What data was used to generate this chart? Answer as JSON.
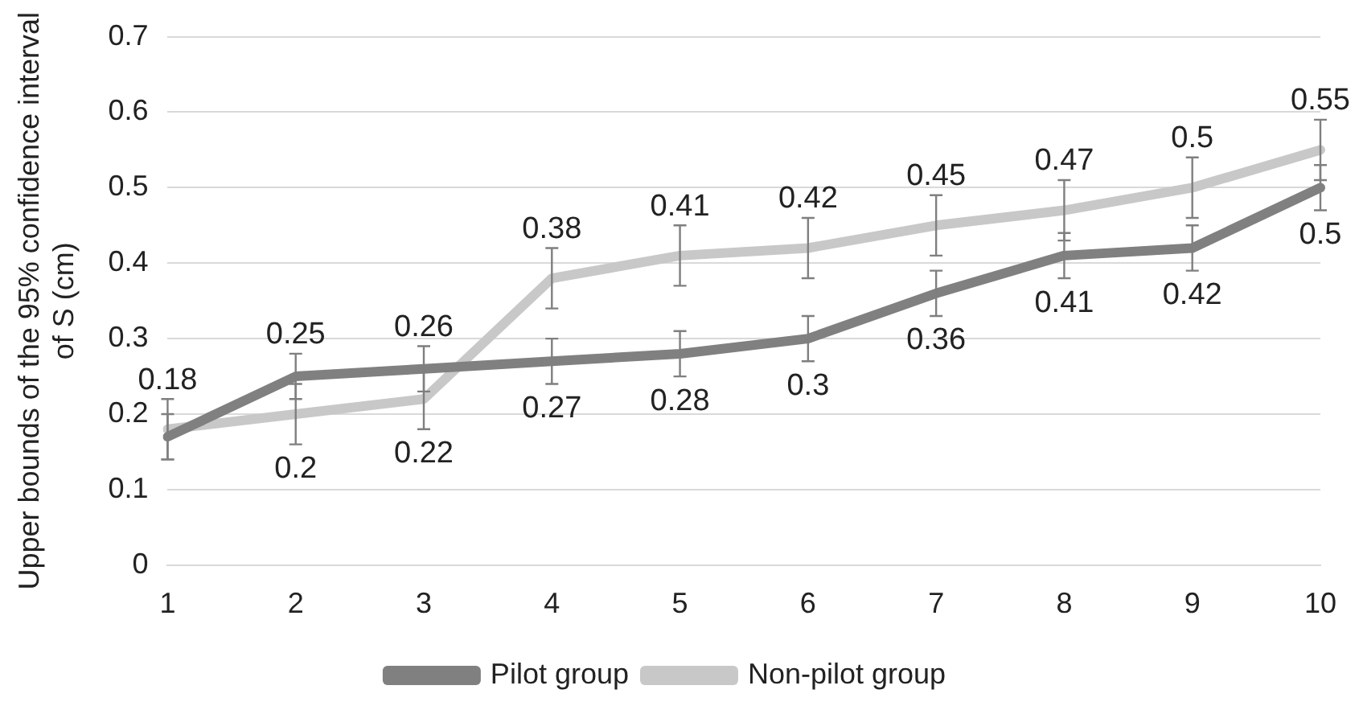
{
  "chart_data": {
    "type": "line",
    "ylabel": "Upper bounds of the 95% confidence interval of S (cm)",
    "categories": [
      "1",
      "2",
      "3",
      "4",
      "5",
      "6",
      "7",
      "8",
      "9",
      "10"
    ],
    "series": [
      {
        "name": "Pilot group",
        "color": "#808080",
        "values": [
          0.17,
          0.25,
          0.26,
          0.27,
          0.28,
          0.3,
          0.36,
          0.41,
          0.42,
          0.5
        ],
        "errors": [
          0.03,
          0.03,
          0.03,
          0.03,
          0.03,
          0.03,
          0.03,
          0.03,
          0.03,
          0.03
        ],
        "value_labels": [
          null,
          "0.25",
          "0.26",
          "0.27",
          "0.28",
          "0.3",
          "0.36",
          "0.41",
          "0.42",
          "0.5"
        ]
      },
      {
        "name": "Non-pilot group",
        "color": "#c8c8c8",
        "values": [
          0.18,
          0.2,
          0.22,
          0.38,
          0.41,
          0.42,
          0.45,
          0.47,
          0.5,
          0.55
        ],
        "errors": [
          0.04,
          0.04,
          0.04,
          0.04,
          0.04,
          0.04,
          0.04,
          0.04,
          0.04,
          0.04
        ],
        "value_labels": [
          "0.18",
          "0.2",
          "0.22",
          "0.38",
          "0.41",
          "0.42",
          "0.45",
          "0.47",
          "0.5",
          "0.55"
        ]
      }
    ],
    "ylim": [
      0,
      0.7
    ],
    "yticks": [
      0,
      0.1,
      0.2,
      0.3,
      0.4,
      0.5,
      0.6,
      0.7
    ],
    "grid": "y",
    "legend": "bottom",
    "marker": "none",
    "line_style": "solid"
  }
}
